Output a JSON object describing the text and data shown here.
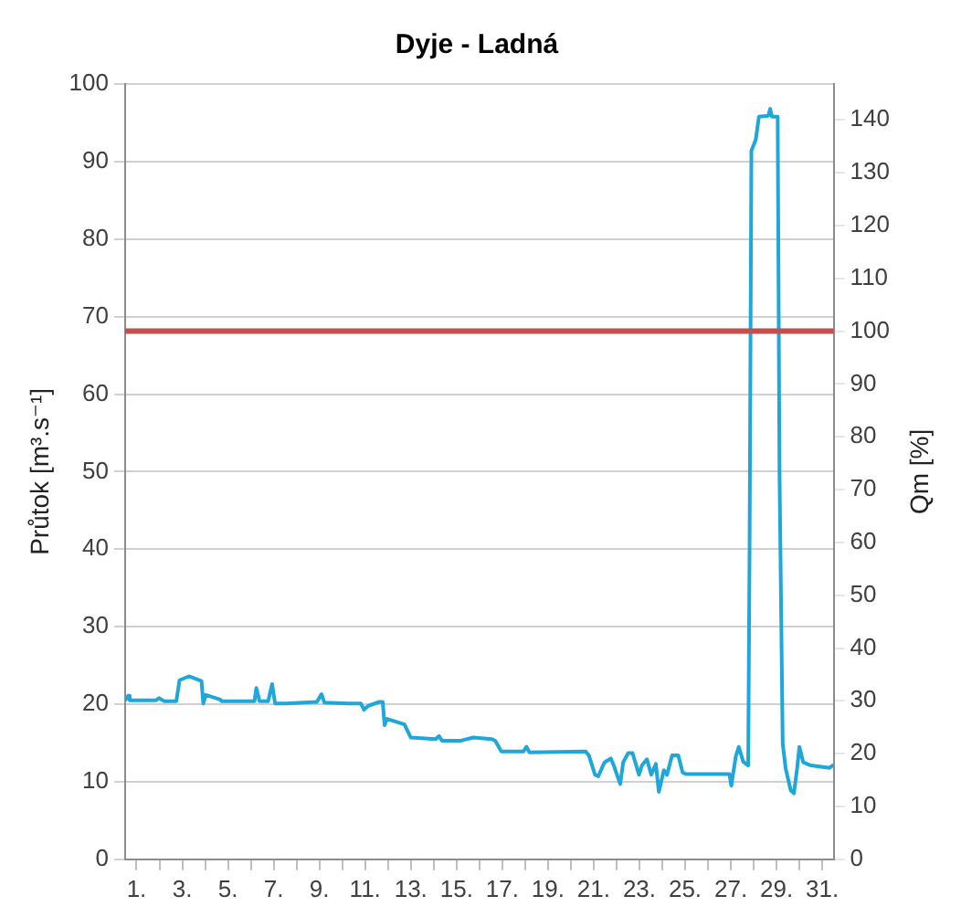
{
  "chart_data": {
    "type": "line",
    "title": "Dyje - Ladná",
    "ylabel": "Průtok [m³.s⁻¹]",
    "y2label": "Qm [%]",
    "xlim": [
      0.5,
      31.5
    ],
    "xticks": [
      {
        "value": 1,
        "label": "1."
      },
      {
        "value": 2,
        "label": null
      },
      {
        "value": 3,
        "label": "3."
      },
      {
        "value": 4,
        "label": null
      },
      {
        "value": 5,
        "label": "5."
      },
      {
        "value": 6,
        "label": null
      },
      {
        "value": 7,
        "label": "7."
      },
      {
        "value": 8,
        "label": null
      },
      {
        "value": 9,
        "label": "9."
      },
      {
        "value": 10,
        "label": null
      },
      {
        "value": 11,
        "label": "11."
      },
      {
        "value": 12,
        "label": null
      },
      {
        "value": 13,
        "label": "13."
      },
      {
        "value": 14,
        "label": null
      },
      {
        "value": 15,
        "label": "15."
      },
      {
        "value": 16,
        "label": null
      },
      {
        "value": 17,
        "label": "17."
      },
      {
        "value": 18,
        "label": null
      },
      {
        "value": 19,
        "label": "19."
      },
      {
        "value": 20,
        "label": null
      },
      {
        "value": 21,
        "label": "21."
      },
      {
        "value": 22,
        "label": null
      },
      {
        "value": 23,
        "label": "23."
      },
      {
        "value": 24,
        "label": null
      },
      {
        "value": 25,
        "label": "25."
      },
      {
        "value": 26,
        "label": null
      },
      {
        "value": 27,
        "label": "27."
      },
      {
        "value": 28,
        "label": null
      },
      {
        "value": 29,
        "label": "29."
      },
      {
        "value": 30,
        "label": null
      },
      {
        "value": 31,
        "label": "31."
      }
    ],
    "ylim": [
      0,
      100
    ],
    "yticks": [
      0,
      10,
      20,
      30,
      40,
      50,
      60,
      70,
      80,
      90,
      100
    ],
    "y2lim": [
      0,
      146.8
    ],
    "y2ticks": [
      0,
      10,
      20,
      30,
      40,
      50,
      60,
      70,
      80,
      90,
      100,
      110,
      120,
      130,
      140
    ],
    "grid": "y",
    "legend": false,
    "marker": "none",
    "line_style": "solid",
    "ref_lines": [
      {
        "axis": "y2",
        "value": 100,
        "label": null,
        "color": "#c0504d"
      }
    ],
    "series": [
      {
        "color": "#1ea7d8",
        "x": [
          0.5,
          0.64,
          0.7,
          1.84,
          1.98,
          2.2,
          2.74,
          2.88,
          3.29,
          3.84,
          3.92,
          4.03,
          4.66,
          4.71,
          6.16,
          6.24,
          6.38,
          6.76,
          6.93,
          7.06,
          7.53,
          8.89,
          9.09,
          9.22,
          10.26,
          10.81,
          10.95,
          11.14,
          11.63,
          11.77,
          11.85,
          11.96,
          12.72,
          13.0,
          14.09,
          14.23,
          14.36,
          15.18,
          15.73,
          16.55,
          16.69,
          16.96,
          17.92,
          18.06,
          18.19,
          20.65,
          20.79,
          21.06,
          21.2,
          21.47,
          21.75,
          21.88,
          22.02,
          22.16,
          22.29,
          22.51,
          22.7,
          22.98,
          23.11,
          23.33,
          23.52,
          23.72,
          23.85,
          24.07,
          24.21,
          24.43,
          24.7,
          24.89,
          25.03,
          26.94,
          27.02,
          27.22,
          27.35,
          27.54,
          27.76,
          27.82,
          27.9,
          28.09,
          28.23,
          28.64,
          28.72,
          28.8,
          29.05,
          29.13,
          29.27,
          29.4,
          29.62,
          29.76,
          29.9,
          30.0,
          30.17,
          30.5,
          31.32,
          31.5
        ],
        "values": [
          20.5,
          21.1,
          20.5,
          20.5,
          20.8,
          20.4,
          20.4,
          23.1,
          23.6,
          23.0,
          20.1,
          21.2,
          20.6,
          20.4,
          20.4,
          22.1,
          20.4,
          20.4,
          22.6,
          20.1,
          20.1,
          20.3,
          21.3,
          20.2,
          20.1,
          20.1,
          19.3,
          19.8,
          20.3,
          20.3,
          17.3,
          18.1,
          17.4,
          15.7,
          15.5,
          15.9,
          15.3,
          15.3,
          15.7,
          15.5,
          15.3,
          13.9,
          13.9,
          14.5,
          13.8,
          13.9,
          13.4,
          10.9,
          10.7,
          12.5,
          13.0,
          12.1,
          10.9,
          9.7,
          12.5,
          13.7,
          13.7,
          10.9,
          12.1,
          12.9,
          10.9,
          12.3,
          8.7,
          11.5,
          10.9,
          13.4,
          13.4,
          11.2,
          11.0,
          11.0,
          9.5,
          13.3,
          14.5,
          12.6,
          12.1,
          40,
          91.4,
          92.8,
          95.8,
          95.9,
          96.8,
          95.8,
          95.8,
          50,
          14.9,
          11.7,
          8.9,
          8.5,
          11.7,
          14.5,
          12.5,
          12.1,
          11.8,
          12.2
        ]
      }
    ]
  }
}
